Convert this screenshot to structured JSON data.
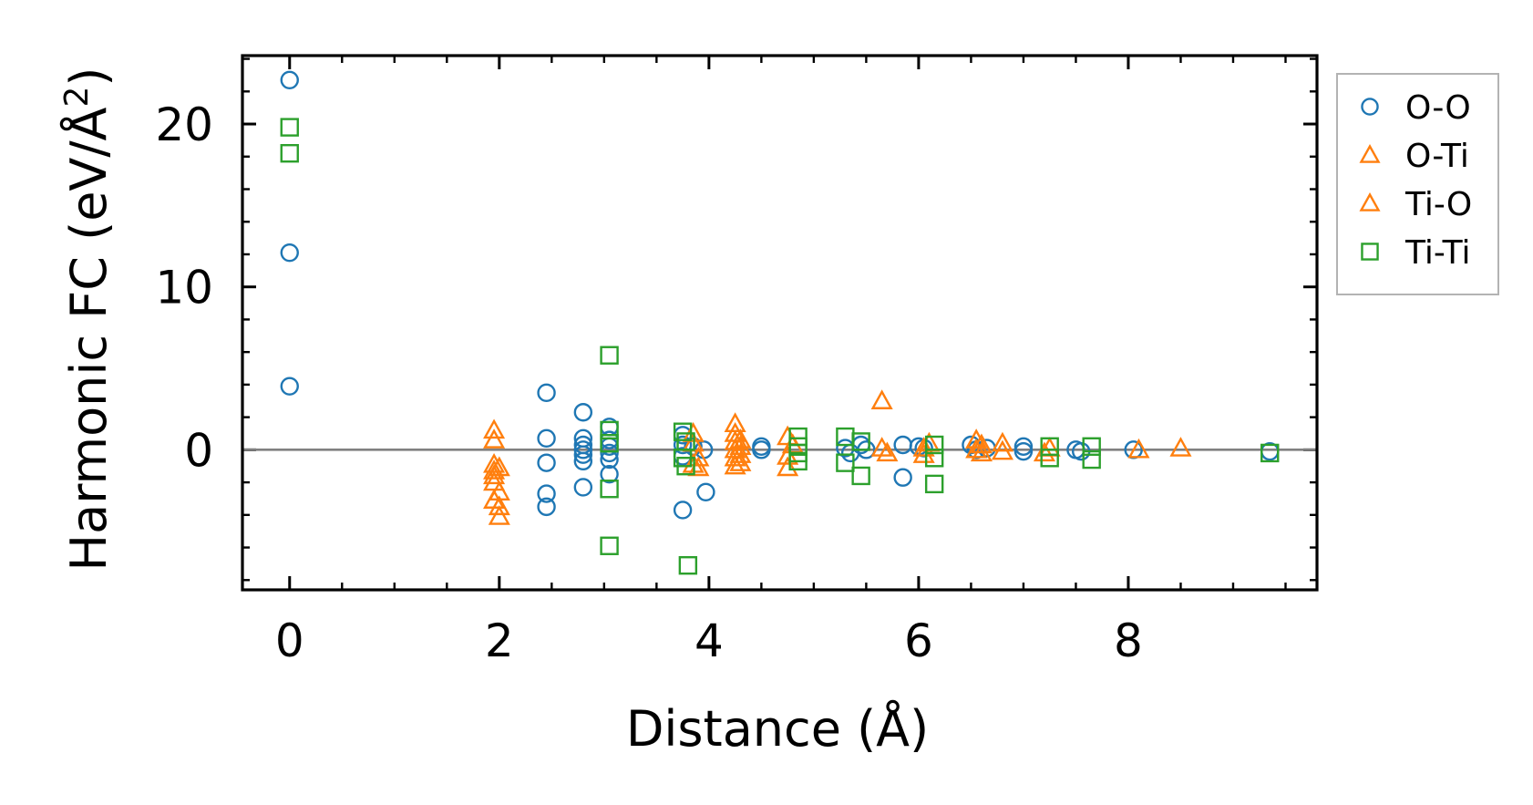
{
  "chart_data": {
    "type": "scatter",
    "xlabel": "Distance (Å)",
    "ylabel_main": "Harmonic FC (eV/Å",
    "ylabel_sup": "2",
    "ylabel_close": ")",
    "xlim": [
      -0.45,
      9.8
    ],
    "ylim": [
      -8.6,
      24.2
    ],
    "xticks": [
      0,
      2,
      4,
      6,
      8
    ],
    "xtick_labels": [
      "0",
      "2",
      "4",
      "6",
      "8"
    ],
    "yticks": [
      0,
      10,
      20
    ],
    "ytick_labels": [
      "0",
      "10",
      "20"
    ],
    "zero_line": 0,
    "legend_position": "outside-right-top",
    "series": [
      {
        "name": "O-O",
        "marker": "circle",
        "color": "#1f77b4",
        "points": [
          [
            0,
            22.7
          ],
          [
            0,
            12.1
          ],
          [
            0,
            3.9
          ],
          [
            2.45,
            3.5
          ],
          [
            2.45,
            0.7
          ],
          [
            2.45,
            -0.8
          ],
          [
            2.45,
            -2.7
          ],
          [
            2.45,
            -3.5
          ],
          [
            2.8,
            2.3
          ],
          [
            2.8,
            0.7
          ],
          [
            2.8,
            0.3
          ],
          [
            2.8,
            0
          ],
          [
            2.8,
            -0.3
          ],
          [
            2.8,
            -0.7
          ],
          [
            2.8,
            -2.3
          ],
          [
            3.05,
            1.4
          ],
          [
            3.05,
            0.6
          ],
          [
            3.05,
            0.2
          ],
          [
            3.05,
            -0.2
          ],
          [
            3.05,
            -0.6
          ],
          [
            3.05,
            -1.5
          ],
          [
            3.75,
            0.9
          ],
          [
            3.75,
            0.3
          ],
          [
            3.75,
            -0.4
          ],
          [
            3.75,
            -3.7
          ],
          [
            3.85,
            0.2
          ],
          [
            3.95,
            0
          ],
          [
            3.97,
            -2.6
          ],
          [
            4.5,
            0.2
          ],
          [
            4.5,
            0
          ],
          [
            5.3,
            0.1
          ],
          [
            5.35,
            -0.2
          ],
          [
            5.45,
            0.3
          ],
          [
            5.5,
            0
          ],
          [
            5.85,
            0.3
          ],
          [
            5.85,
            -1.7
          ],
          [
            6.0,
            0.2
          ],
          [
            6.05,
            0.1
          ],
          [
            6.5,
            0.3
          ],
          [
            6.55,
            0
          ],
          [
            6.65,
            0.1
          ],
          [
            7.0,
            0.2
          ],
          [
            7.0,
            -0.1
          ],
          [
            7.5,
            0
          ],
          [
            7.55,
            -0.1
          ],
          [
            8.05,
            0
          ],
          [
            9.35,
            -0.1
          ]
        ]
      },
      {
        "name": "O-Ti",
        "marker": "triangle",
        "color": "#ff7f0e",
        "points": [
          [
            1.95,
            1.2
          ],
          [
            1.95,
            0.6
          ],
          [
            1.95,
            -0.9
          ],
          [
            1.95,
            -1.3
          ],
          [
            1.95,
            -2.0
          ],
          [
            1.95,
            -3.1
          ],
          [
            2.0,
            -1.1
          ],
          [
            2.0,
            -3.5
          ],
          [
            2.0,
            -4.1
          ],
          [
            3.85,
            1.0
          ],
          [
            3.85,
            0.4
          ],
          [
            3.9,
            -0.5
          ],
          [
            3.9,
            -1.1
          ],
          [
            4.25,
            1.6
          ],
          [
            4.25,
            1.0
          ],
          [
            4.25,
            0.5
          ],
          [
            4.25,
            0
          ],
          [
            4.25,
            -0.5
          ],
          [
            4.25,
            -1.0
          ],
          [
            4.3,
            0.6
          ],
          [
            4.3,
            -0.3
          ],
          [
            4.75,
            0.8
          ],
          [
            4.75,
            -0.4
          ],
          [
            4.75,
            -1.1
          ],
          [
            5.65,
            3.0
          ],
          [
            5.65,
            0.1
          ],
          [
            5.7,
            -0.2
          ],
          [
            6.05,
            0.1
          ],
          [
            6.05,
            -0.3
          ],
          [
            6.55,
            0.6
          ],
          [
            6.55,
            0
          ],
          [
            6.6,
            0.3
          ],
          [
            6.6,
            -0.2
          ],
          [
            6.8,
            0.4
          ],
          [
            6.8,
            -0.1
          ],
          [
            7.2,
            -0.2
          ],
          [
            8.1,
            0
          ],
          [
            8.5,
            0.1
          ]
        ]
      },
      {
        "name": "Ti-O",
        "marker": "triangle",
        "color": "#ff7f0e",
        "points": [
          [
            1.95,
            -1.6
          ],
          [
            2.0,
            -2.6
          ],
          [
            3.85,
            -0.9
          ],
          [
            4.3,
            -0.8
          ],
          [
            4.3,
            0.2
          ],
          [
            4.8,
            0.3
          ],
          [
            6.1,
            0.4
          ],
          [
            7.25,
            0.1
          ]
        ]
      },
      {
        "name": "Ti-Ti",
        "marker": "square",
        "color": "#2ca02c",
        "points": [
          [
            0,
            19.8
          ],
          [
            0,
            18.2
          ],
          [
            3.05,
            5.8
          ],
          [
            3.05,
            1.2
          ],
          [
            3.05,
            0.4
          ],
          [
            3.05,
            -2.4
          ],
          [
            3.05,
            -5.9
          ],
          [
            3.75,
            1.1
          ],
          [
            3.75,
            -0.5
          ],
          [
            3.78,
            0.5
          ],
          [
            3.78,
            -1.0
          ],
          [
            3.8,
            -7.1
          ],
          [
            4.85,
            0.8
          ],
          [
            4.85,
            0.2
          ],
          [
            4.85,
            -0.2
          ],
          [
            4.85,
            -0.7
          ],
          [
            5.3,
            0.8
          ],
          [
            5.3,
            -0.8
          ],
          [
            5.45,
            0.5
          ],
          [
            5.45,
            -1.6
          ],
          [
            6.15,
            0.3
          ],
          [
            6.15,
            -0.5
          ],
          [
            6.15,
            -2.1
          ],
          [
            7.25,
            0.2
          ],
          [
            7.25,
            -0.5
          ],
          [
            7.65,
            0.2
          ],
          [
            7.65,
            -0.6
          ],
          [
            9.35,
            -0.2
          ]
        ]
      }
    ]
  }
}
